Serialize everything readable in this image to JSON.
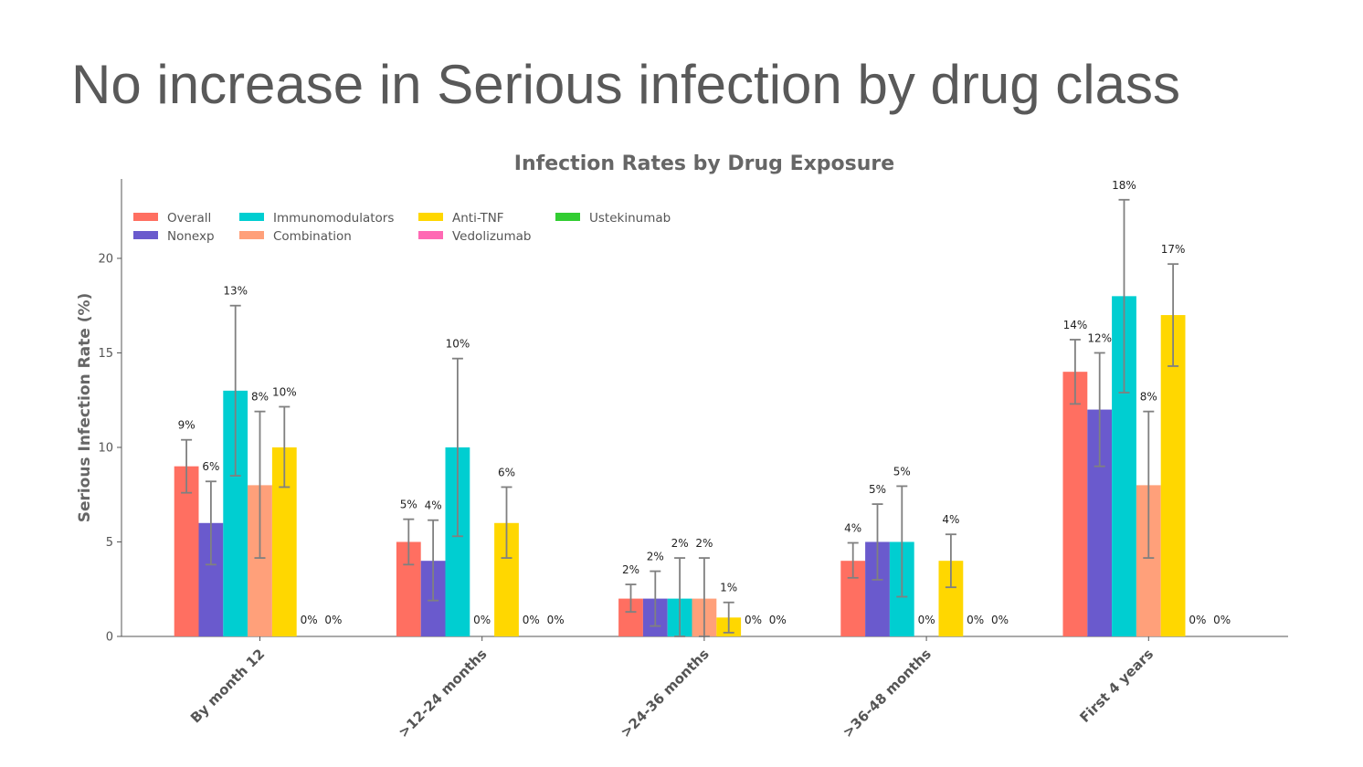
{
  "slide": {
    "title": "No increase in Serious infection by drug class"
  },
  "colors": {
    "Overall": "#FF6F61",
    "Nonexp": "#6A5ACD",
    "Immunomodulators": "#00CED1",
    "Combination": "#FFA07A",
    "Anti-TNF": "#FFD700",
    "Vedolizumab": "#FF69B4",
    "Ustekinumab": "#32CD32"
  },
  "chart_data": {
    "type": "bar",
    "title": "Infection Rates by Drug Exposure",
    "xlabel": "",
    "ylabel": "Serious Infection Rate (%)",
    "ylim": [
      0,
      24.2
    ],
    "yticks": [
      0,
      5,
      10,
      15,
      20
    ],
    "legend_position": "top-left",
    "grid": false,
    "categories": [
      "By month 12",
      ">12-24 months",
      ">24-36 months",
      ">36-48 months",
      "First 4 years"
    ],
    "series": [
      {
        "name": "Overall",
        "values": [
          9,
          5,
          2,
          4,
          14
        ],
        "err_low": [
          7.6,
          3.8,
          1.3,
          3.1,
          12.3
        ],
        "err_high": [
          10.4,
          6.2,
          2.75,
          4.95,
          15.7
        ]
      },
      {
        "name": "Nonexp",
        "values": [
          6,
          4,
          2,
          5,
          12
        ],
        "err_low": [
          3.8,
          1.9,
          0.55,
          3.0,
          9.0
        ],
        "err_high": [
          8.2,
          6.15,
          3.45,
          7.0,
          15.0
        ]
      },
      {
        "name": "Immunomodulators",
        "values": [
          13,
          10,
          2,
          5,
          18
        ],
        "err_low": [
          8.5,
          5.3,
          0,
          2.1,
          12.9
        ],
        "err_high": [
          17.5,
          14.7,
          4.15,
          7.95,
          23.1
        ]
      },
      {
        "name": "Combination",
        "values": [
          8,
          0,
          2,
          0,
          8
        ],
        "err_low": [
          4.15,
          null,
          0,
          null,
          4.15
        ],
        "err_high": [
          11.9,
          null,
          4.15,
          null,
          11.9
        ]
      },
      {
        "name": "Anti-TNF",
        "values": [
          10,
          6,
          1,
          4,
          17
        ],
        "err_low": [
          7.9,
          4.15,
          0.2,
          2.6,
          14.3
        ],
        "err_high": [
          12.15,
          7.9,
          1.8,
          5.4,
          19.7
        ]
      },
      {
        "name": "Vedolizumab",
        "values": [
          0,
          0,
          0,
          0,
          0
        ]
      },
      {
        "name": "Ustekinumab",
        "values": [
          0,
          0,
          0,
          0,
          0
        ]
      }
    ],
    "data_labels": [
      [
        "9%",
        "6%",
        "13%",
        "8%",
        "10%",
        "0%",
        "0%"
      ],
      [
        "5%",
        "4%",
        "10%",
        "0%",
        "6%",
        "0%",
        "0%"
      ],
      [
        "2%",
        "2%",
        "2%",
        "2%",
        "1%",
        "0%",
        "0%"
      ],
      [
        "4%",
        "5%",
        "5%",
        "0%",
        "4%",
        "0%",
        "0%"
      ],
      [
        "14%",
        "12%",
        "18%",
        "8%",
        "17%",
        "0%",
        "0%"
      ]
    ]
  }
}
